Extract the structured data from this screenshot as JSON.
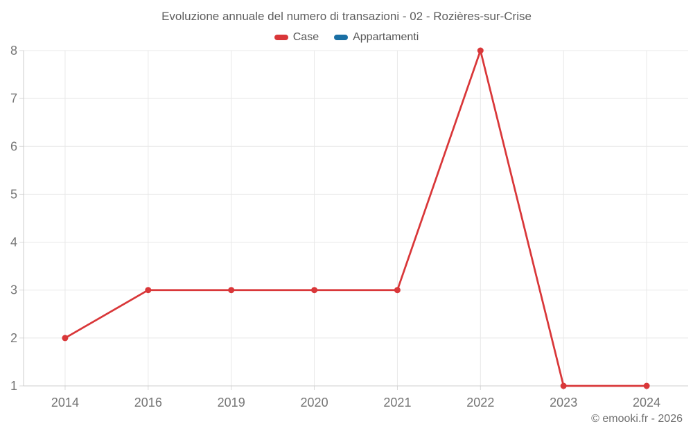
{
  "chart_data": {
    "type": "line",
    "title": "Evoluzione annuale del numero di transazioni - 02 - Rozières-sur-Crise",
    "categories": [
      "2014",
      "2016",
      "2019",
      "2020",
      "2021",
      "2022",
      "2023",
      "2024"
    ],
    "series": [
      {
        "name": "Case",
        "color": "#d93739",
        "values": [
          2,
          3,
          3,
          3,
          3,
          8,
          1,
          1
        ]
      },
      {
        "name": "Appartamenti",
        "color": "#1a6fa4",
        "values": [
          null,
          null,
          null,
          null,
          null,
          null,
          null,
          null
        ]
      }
    ],
    "ylim": [
      1,
      8
    ],
    "yticks": [
      1,
      2,
      3,
      4,
      5,
      6,
      7,
      8
    ],
    "grid": true,
    "legend_position": "top",
    "style": {
      "grid_color": "#e8e8e8",
      "tick_color": "#d9d9d9",
      "axis_color": "#cccccc",
      "tick_label_color": "#757575",
      "marker_radius": 4.5,
      "line_width": 2.75
    }
  },
  "footer": {
    "copyright": "© emooki.fr - 2026"
  }
}
